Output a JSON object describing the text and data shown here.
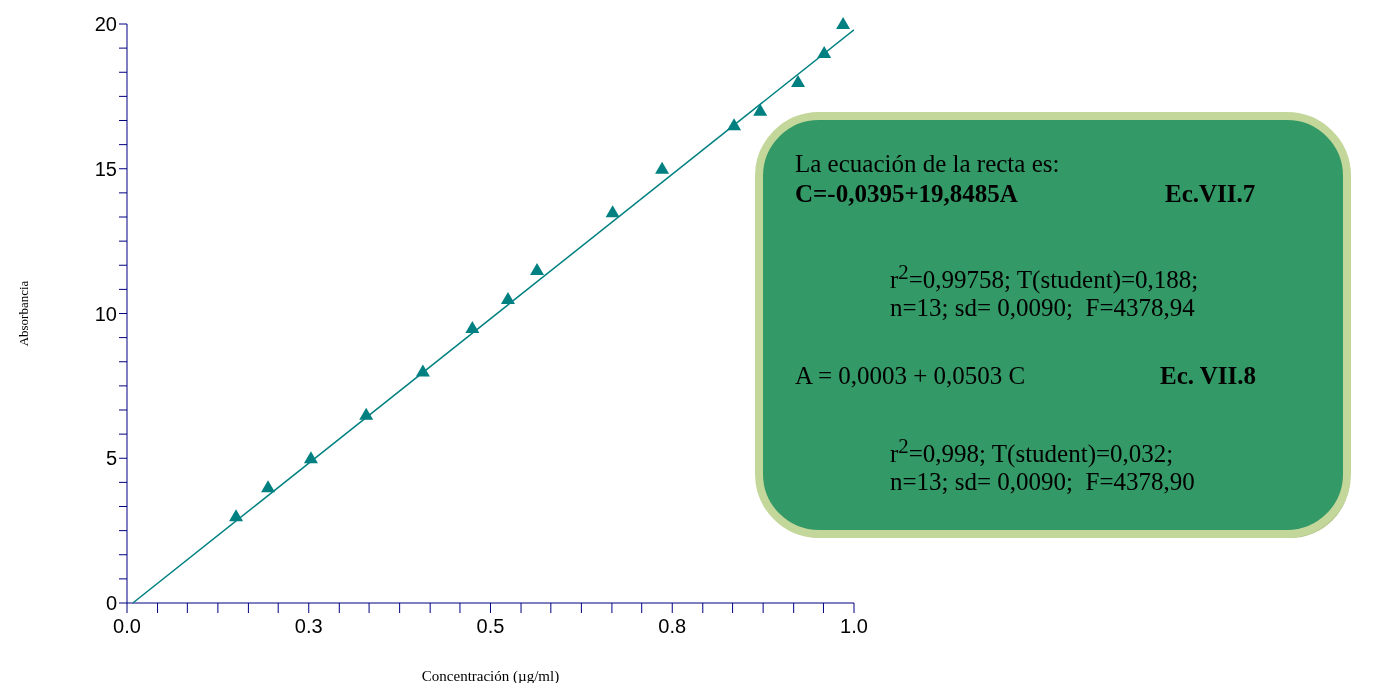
{
  "chart_data": {
    "type": "scatter",
    "xlabel": "Concentración (µg/ml)",
    "ylabel": "Absorbancia",
    "x": [
      0.15,
      0.194,
      0.253,
      0.329,
      0.407,
      0.475,
      0.524,
      0.564,
      0.668,
      0.736,
      0.835,
      0.871,
      0.923,
      0.959,
      0.985
    ],
    "series": [
      {
        "type": "scatter",
        "color": "#008080",
        "marker": "triangle",
        "values": [
          3,
          4,
          5,
          6.5,
          8,
          9.5,
          10.5,
          11.5,
          13.5,
          15,
          16.5,
          17,
          18,
          19,
          20
        ]
      },
      {
        "type": "line",
        "color": "#008080",
        "marker": "none",
        "x": [
          0.008,
          1.0
        ],
        "values": [
          0,
          19.8
        ]
      }
    ],
    "xlim": [
      0,
      1
    ],
    "ylim": [
      0,
      20
    ],
    "xticks": [
      {
        "value": 0,
        "label": "0.0"
      },
      {
        "value": 0.042,
        "label": null
      },
      {
        "value": 0.083,
        "label": null
      },
      {
        "value": 0.125,
        "label": null
      },
      {
        "value": 0.167,
        "label": null
      },
      {
        "value": 0.208,
        "label": null
      },
      {
        "value": 0.25,
        "label": "0.3"
      },
      {
        "value": 0.292,
        "label": null
      },
      {
        "value": 0.333,
        "label": null
      },
      {
        "value": 0.375,
        "label": null
      },
      {
        "value": 0.417,
        "label": null
      },
      {
        "value": 0.458,
        "label": null
      },
      {
        "value": 0.5,
        "label": "0.5"
      },
      {
        "value": 0.542,
        "label": null
      },
      {
        "value": 0.583,
        "label": null
      },
      {
        "value": 0.625,
        "label": null
      },
      {
        "value": 0.667,
        "label": null
      },
      {
        "value": 0.708,
        "label": null
      },
      {
        "value": 0.75,
        "label": "0.8"
      },
      {
        "value": 0.792,
        "label": null
      },
      {
        "value": 0.833,
        "label": null
      },
      {
        "value": 0.875,
        "label": null
      },
      {
        "value": 0.917,
        "label": null
      },
      {
        "value": 0.958,
        "label": null
      },
      {
        "value": 1,
        "label": "1.0"
      }
    ],
    "yticks": [
      0,
      {
        "value": 0.833,
        "label": null
      },
      {
        "value": 1.667,
        "label": null
      },
      {
        "value": 2.5,
        "label": null
      },
      {
        "value": 3.333,
        "label": null
      },
      {
        "value": 4.167,
        "label": null
      },
      5,
      {
        "value": 5.833,
        "label": null
      },
      {
        "value": 6.667,
        "label": null
      },
      {
        "value": 7.5,
        "label": null
      },
      {
        "value": 8.333,
        "label": null
      },
      {
        "value": 9.167,
        "label": null
      },
      10,
      {
        "value": 10.833,
        "label": null
      },
      {
        "value": 11.667,
        "label": null
      },
      {
        "value": 12.5,
        "label": null
      },
      {
        "value": 13.333,
        "label": null
      },
      {
        "value": 14.167,
        "label": null
      },
      15,
      {
        "value": 15.833,
        "label": null
      },
      {
        "value": 16.667,
        "label": null
      },
      {
        "value": 17.5,
        "label": null
      },
      {
        "value": 18.333,
        "label": null
      },
      {
        "value": 19.167,
        "label": null
      },
      20
    ],
    "grid": false,
    "legend": false,
    "annotations": [
      "La ecuación de la recta es:",
      "C=-0,0395+19,8485A",
      "Ec.VII.7",
      "r$^{2}$=0,99758; T(student)=0,188;",
      "n=13; sd= 0,0090;  F=4378,94",
      "A = 0,0003 + 0,0503 C",
      "Ec. VII.8",
      "r$^{2}$=0,998; T(student)=0,032;",
      "n=13; sd= 0,0090;  F=4378,90"
    ]
  }
}
